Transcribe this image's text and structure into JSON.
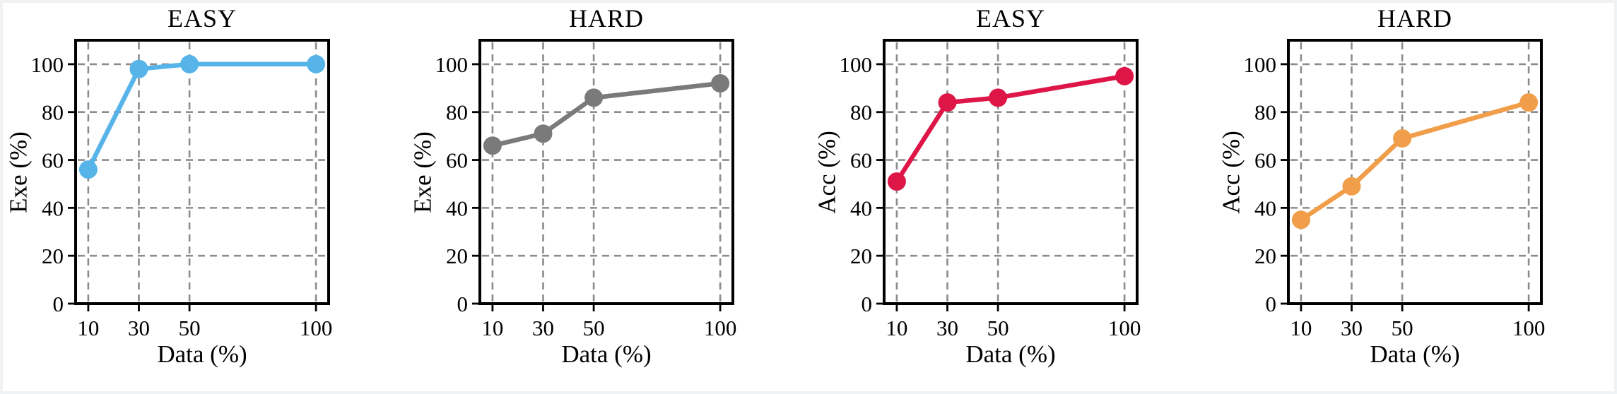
{
  "figure": {
    "background": "#FFFFFF",
    "edge_color": "#F0F2F4"
  },
  "style": {
    "grid_color": "#8C8C8C",
    "grid_dash": "10 7",
    "grid_width": 2.6,
    "frame_color": "#000000",
    "frame_width": 4,
    "tick_color": "#000000",
    "tick_length": 9,
    "tick_width": 2.8,
    "line_width": 6.5,
    "marker_radius": 13
  },
  "chart_data": [
    {
      "type": "line",
      "title": "EASY",
      "xlabel": "Data  (%)",
      "ylabel": "Exe (%)",
      "x": [
        10,
        30,
        50,
        100
      ],
      "values": [
        56,
        98,
        100,
        100
      ],
      "x_ticks": [
        10,
        30,
        50,
        100
      ],
      "y_ticks": [
        0,
        20,
        40,
        60,
        80,
        100
      ],
      "xlim": [
        5,
        105
      ],
      "ylim": [
        0,
        110
      ],
      "grid": "dashed",
      "legend": "none",
      "color": "#56B4E9"
    },
    {
      "type": "line",
      "title": "HARD",
      "xlabel": "Data  (%)",
      "ylabel": "Exe (%)",
      "x": [
        10,
        30,
        50,
        100
      ],
      "values": [
        66,
        71,
        86,
        92
      ],
      "x_ticks": [
        10,
        30,
        50,
        100
      ],
      "y_ticks": [
        0,
        20,
        40,
        60,
        80,
        100
      ],
      "xlim": [
        5,
        105
      ],
      "ylim": [
        0,
        110
      ],
      "grid": "dashed",
      "legend": "none",
      "color": "#7A7A7A"
    },
    {
      "type": "line",
      "title": "EASY",
      "xlabel": "Data  (%)",
      "ylabel": "Acc (%)",
      "x": [
        10,
        30,
        50,
        100
      ],
      "values": [
        51,
        84,
        86,
        95
      ],
      "x_ticks": [
        10,
        30,
        50,
        100
      ],
      "y_ticks": [
        0,
        20,
        40,
        60,
        80,
        100
      ],
      "xlim": [
        5,
        105
      ],
      "ylim": [
        0,
        110
      ],
      "grid": "dashed",
      "legend": "none",
      "color": "#DE1648"
    },
    {
      "type": "line",
      "title": "HARD",
      "xlabel": "Data  (%)",
      "ylabel": "Acc (%)",
      "x": [
        10,
        30,
        50,
        100
      ],
      "values": [
        35,
        49,
        69,
        84
      ],
      "x_ticks": [
        10,
        30,
        50,
        100
      ],
      "y_ticks": [
        0,
        20,
        40,
        60,
        80,
        100
      ],
      "xlim": [
        5,
        105
      ],
      "ylim": [
        0,
        110
      ],
      "grid": "dashed",
      "legend": "none",
      "color": "#F09E4A"
    }
  ]
}
